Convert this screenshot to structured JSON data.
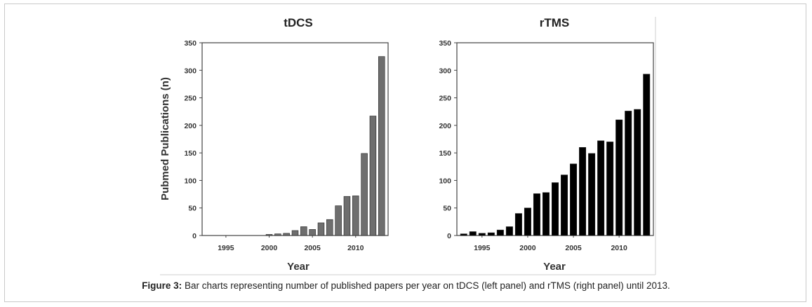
{
  "caption": {
    "label": "Figure 3:",
    "text": " Bar charts representing number of published papers per year on tDCS (left panel) and rTMS (right panel) until 2013."
  },
  "chart_data": [
    {
      "type": "bar",
      "title": "tDCS",
      "xlabel": "Year",
      "ylabel": "Pubmed Publications (n)",
      "ylim": [
        0,
        350
      ],
      "yticks": [
        0,
        50,
        100,
        150,
        200,
        250,
        300,
        350
      ],
      "xticks": [
        1995,
        2000,
        2005,
        2010
      ],
      "bar_color": "#6e6e6e",
      "categories": [
        1993,
        1994,
        1995,
        1996,
        1997,
        1998,
        1999,
        2000,
        2001,
        2002,
        2003,
        2004,
        2005,
        2006,
        2007,
        2008,
        2009,
        2010,
        2011,
        2012,
        2013
      ],
      "values": [
        0,
        0,
        0,
        0,
        0,
        0,
        0,
        2,
        3,
        4,
        9,
        16,
        11,
        23,
        29,
        54,
        71,
        72,
        149,
        217,
        325
      ]
    },
    {
      "type": "bar",
      "title": "rTMS",
      "xlabel": "Year",
      "ylabel": "",
      "ylim": [
        0,
        350
      ],
      "yticks": [
        0,
        50,
        100,
        150,
        200,
        250,
        300,
        350
      ],
      "xticks": [
        1995,
        2000,
        2005,
        2010
      ],
      "bar_color": "#000000",
      "categories": [
        1993,
        1994,
        1995,
        1996,
        1997,
        1998,
        1999,
        2000,
        2001,
        2002,
        2003,
        2004,
        2005,
        2006,
        2007,
        2008,
        2009,
        2010,
        2011,
        2012,
        2013
      ],
      "values": [
        3,
        7,
        4,
        5,
        10,
        16,
        40,
        50,
        76,
        78,
        96,
        110,
        130,
        160,
        149,
        172,
        170,
        210,
        226,
        229,
        293
      ]
    }
  ]
}
